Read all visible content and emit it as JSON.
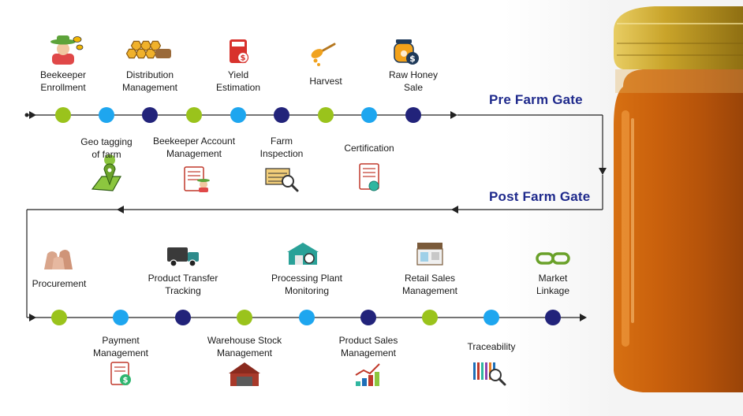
{
  "gates": {
    "pre": "Pre Farm Gate",
    "post": "Post Farm Gate"
  },
  "colors": {
    "green": "#9ac31c",
    "blue": "#1ea6ef",
    "navy": "#22237a",
    "line": "#222222",
    "gate_text": "#1f2a8c",
    "honey": "#c55f0c",
    "lid": "#c9a42a"
  },
  "pre_top": [
    {
      "label": "Beekeeper\nEnrollment",
      "icon": "beekeeper-icon"
    },
    {
      "label": "Distribution\nManagement",
      "icon": "honeycomb-icon"
    },
    {
      "label": "Yield\nEstimation",
      "icon": "calculator-dollar-icon"
    },
    {
      "label": "Harvest",
      "icon": "honey-dipper-icon"
    },
    {
      "label": "Raw Honey\nSale",
      "icon": "honey-jar-dollar-icon"
    }
  ],
  "pre_bottom": [
    {
      "label": "Geo tagging\nof farm",
      "icon": "map-pin-icon"
    },
    {
      "label": "Beekeeper Account\nManagement",
      "icon": "account-document-icon"
    },
    {
      "label": "Farm\nInspection",
      "icon": "inspection-search-icon"
    },
    {
      "label": "Certification",
      "icon": "certificate-icon"
    }
  ],
  "post_top": [
    {
      "label": "Procurement",
      "icon": "sacks-icon"
    },
    {
      "label": "Product Transfer\nTracking",
      "icon": "truck-icon"
    },
    {
      "label": "Processing Plant\nMonitoring",
      "icon": "plant-gear-icon"
    },
    {
      "label": "Retail Sales\nManagement",
      "icon": "store-icon"
    },
    {
      "label": "Market\nLinkage",
      "icon": "chain-link-icon"
    }
  ],
  "post_bottom": [
    {
      "label": "Payment\nManagement",
      "icon": "invoice-dollar-icon"
    },
    {
      "label": "Warehouse Stock\nManagement",
      "icon": "warehouse-icon"
    },
    {
      "label": "Product Sales\nManagement",
      "icon": "sales-chart-icon"
    },
    {
      "label": "Traceability",
      "icon": "barcode-search-icon"
    }
  ]
}
